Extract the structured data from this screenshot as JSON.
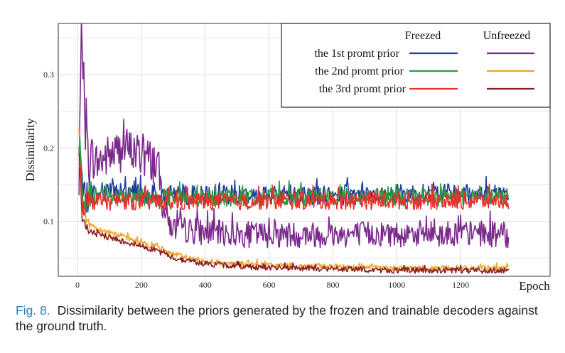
{
  "caption": {
    "label": "Fig. 8.",
    "text": "Dissimilarity between the priors generated by the frozen and trainable decoders against the ground truth."
  },
  "chart_data": {
    "type": "line",
    "title": "",
    "xlabel": "Epoch",
    "ylabel": "Dissimilarity",
    "xlim": [
      -60,
      1480
    ],
    "ylim": [
      0.025,
      0.37
    ],
    "xticks": [
      0,
      200,
      400,
      600,
      800,
      1000,
      1200
    ],
    "yticks": [
      0.1,
      0.2,
      0.3
    ],
    "ytick_labels": [
      "0.1",
      "0.2",
      "0.3"
    ],
    "grid": true,
    "legend": {
      "placement": "top-right",
      "column_headers": [
        "Freezed",
        "Unfreezed"
      ],
      "row_labels": [
        "the 1st promt prior",
        "the 2nd promt prior",
        "the 3rd promt prior"
      ]
    },
    "series": [
      {
        "name": "the 1st promt prior",
        "group": "Freezed",
        "color": "#1f3f9a",
        "x": [
          5,
          15,
          30,
          60,
          100,
          150,
          200,
          250,
          300,
          400,
          500,
          600,
          700,
          800,
          900,
          1000,
          1100,
          1200,
          1300,
          1350
        ],
        "y": [
          0.21,
          0.14,
          0.135,
          0.14,
          0.138,
          0.14,
          0.138,
          0.135,
          0.135,
          0.135,
          0.135,
          0.136,
          0.136,
          0.136,
          0.136,
          0.137,
          0.137,
          0.137,
          0.137,
          0.137
        ]
      },
      {
        "name": "the 2nd promt prior",
        "group": "Freezed",
        "color": "#2e9a3c",
        "x": [
          5,
          15,
          30,
          60,
          100,
          150,
          200,
          250,
          300,
          400,
          500,
          600,
          700,
          800,
          900,
          1000,
          1100,
          1200,
          1300,
          1350
        ],
        "y": [
          0.2,
          0.135,
          0.13,
          0.135,
          0.133,
          0.135,
          0.133,
          0.132,
          0.132,
          0.132,
          0.132,
          0.133,
          0.133,
          0.133,
          0.133,
          0.133,
          0.133,
          0.133,
          0.133,
          0.133
        ]
      },
      {
        "name": "the 3rd promt prior",
        "group": "Freezed",
        "color": "#e8302a",
        "x": [
          5,
          15,
          30,
          60,
          100,
          150,
          200,
          250,
          300,
          400,
          500,
          600,
          700,
          800,
          900,
          1000,
          1100,
          1200,
          1300,
          1350
        ],
        "y": [
          0.2,
          0.13,
          0.125,
          0.128,
          0.127,
          0.128,
          0.127,
          0.126,
          0.126,
          0.127,
          0.127,
          0.128,
          0.128,
          0.128,
          0.128,
          0.128,
          0.128,
          0.128,
          0.128,
          0.128
        ]
      },
      {
        "name": "the 1st promt prior",
        "group": "Unfreezed",
        "color": "#7b2a8c",
        "x": [
          5,
          12,
          30,
          60,
          100,
          150,
          200,
          250,
          270,
          290,
          300,
          400,
          500,
          600,
          700,
          800,
          900,
          1000,
          1100,
          1200,
          1300,
          1350
        ],
        "y": [
          0.13,
          0.36,
          0.2,
          0.18,
          0.19,
          0.2,
          0.19,
          0.18,
          0.12,
          0.095,
          0.09,
          0.085,
          0.082,
          0.082,
          0.082,
          0.082,
          0.083,
          0.083,
          0.083,
          0.083,
          0.083,
          0.08
        ]
      },
      {
        "name": "the 2nd promt prior",
        "group": "Unfreezed",
        "color": "#f2a12a",
        "x": [
          5,
          15,
          30,
          60,
          100,
          150,
          200,
          250,
          300,
          400,
          500,
          600,
          700,
          800,
          900,
          1000,
          1100,
          1200,
          1300,
          1350
        ],
        "y": [
          0.23,
          0.12,
          0.1,
          0.09,
          0.085,
          0.078,
          0.07,
          0.065,
          0.055,
          0.045,
          0.042,
          0.04,
          0.039,
          0.038,
          0.037,
          0.036,
          0.036,
          0.036,
          0.036,
          0.036
        ]
      },
      {
        "name": "the 3rd promt prior",
        "group": "Unfreezed",
        "color": "#8b1e22",
        "x": [
          5,
          15,
          30,
          60,
          100,
          150,
          200,
          250,
          300,
          400,
          500,
          600,
          700,
          800,
          900,
          1000,
          1100,
          1200,
          1300,
          1350
        ],
        "y": [
          0.2,
          0.1,
          0.09,
          0.082,
          0.078,
          0.072,
          0.066,
          0.06,
          0.05,
          0.042,
          0.039,
          0.037,
          0.036,
          0.035,
          0.034,
          0.033,
          0.033,
          0.033,
          0.033,
          0.033
        ]
      }
    ]
  }
}
